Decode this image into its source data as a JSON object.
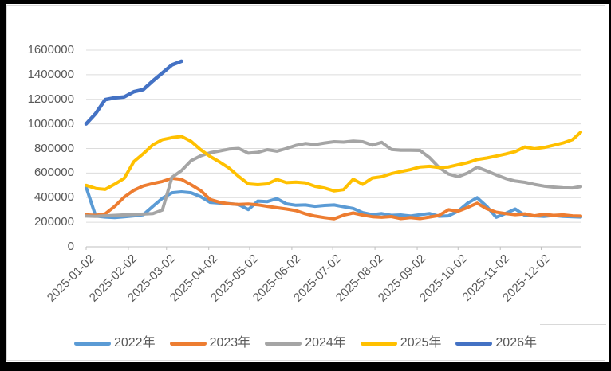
{
  "frame": {
    "background": "#000000",
    "canvas": "#FFFFFF",
    "border_color": "#D9D9D9"
  },
  "chart_data": {
    "type": "line",
    "title": "",
    "xlabel": "",
    "ylabel": "",
    "grid": true,
    "legend_position": "bottom",
    "ylim": [
      0,
      1600000
    ],
    "y_ticks": [
      0,
      200000,
      400000,
      600000,
      800000,
      1000000,
      1200000,
      1400000,
      1600000
    ],
    "x_tick_labels": [
      "2025-01-02",
      "2025-02-02",
      "2025-03-02",
      "2025-04-02",
      "2025-05-02",
      "2025-06-02",
      "2025-07-02",
      "2025-08-02",
      "2025-09-02",
      "2025-10-02",
      "2025-11-02",
      "2025-12-02"
    ],
    "colors": {
      "grid": "#DCDCDC",
      "axis": "#BFBFBF",
      "labels": "#595959"
    },
    "x_dates": [
      "2025-01-02",
      "2025-01-09",
      "2025-01-16",
      "2025-01-23",
      "2025-01-30",
      "2025-02-06",
      "2025-02-13",
      "2025-02-20",
      "2025-02-27",
      "2025-03-06",
      "2025-03-13",
      "2025-03-20",
      "2025-03-27",
      "2025-04-03",
      "2025-04-10",
      "2025-04-17",
      "2025-04-24",
      "2025-05-01",
      "2025-05-08",
      "2025-05-15",
      "2025-05-22",
      "2025-05-29",
      "2025-06-05",
      "2025-06-12",
      "2025-06-19",
      "2025-06-26",
      "2025-07-03",
      "2025-07-10",
      "2025-07-17",
      "2025-07-24",
      "2025-07-31",
      "2025-08-07",
      "2025-08-14",
      "2025-08-21",
      "2025-08-28",
      "2025-09-04",
      "2025-09-11",
      "2025-09-18",
      "2025-09-25",
      "2025-10-02",
      "2025-10-09",
      "2025-10-16",
      "2025-10-23",
      "2025-10-30",
      "2025-11-06",
      "2025-11-13",
      "2025-11-20",
      "2025-11-27",
      "2025-12-04",
      "2025-12-11",
      "2025-12-18",
      "2025-12-25",
      "2025-12-31"
    ],
    "series": [
      {
        "name": "2022年",
        "color": "#5B9BD5",
        "width": 4,
        "values": [
          485000,
          250000,
          242000,
          238000,
          245000,
          252000,
          262000,
          330000,
          395000,
          440000,
          447000,
          440000,
          408000,
          362000,
          356000,
          352000,
          343000,
          303000,
          372000,
          368000,
          392000,
          350000,
          338000,
          341000,
          330000,
          337000,
          341000,
          326000,
          312000,
          278000,
          262000,
          270000,
          256000,
          259000,
          251000,
          261000,
          271000,
          249000,
          252000,
          290000,
          355000,
          400000,
          330000,
          240000,
          272000,
          308000,
          255000,
          252000,
          248000,
          255000,
          248000,
          245000,
          242000
        ]
      },
      {
        "name": "2023年",
        "color": "#ED7D31",
        "width": 4,
        "values": [
          260000,
          256000,
          268000,
          330000,
          405000,
          460000,
          495000,
          515000,
          532000,
          558000,
          548000,
          505000,
          458000,
          385000,
          362000,
          350000,
          345000,
          348000,
          342000,
          330000,
          318000,
          308000,
          295000,
          268000,
          250000,
          238000,
          228000,
          258000,
          275000,
          258000,
          245000,
          240000,
          246000,
          230000,
          238000,
          230000,
          242000,
          255000,
          302000,
          290000,
          320000,
          355000,
          310000,
          282000,
          270000,
          262000,
          268000,
          252000,
          265000,
          256000,
          260000,
          252000,
          250000
        ]
      },
      {
        "name": "2024年",
        "color": "#A5A5A5",
        "width": 4,
        "values": [
          250000,
          248000,
          252000,
          256000,
          260000,
          263000,
          266000,
          270000,
          300000,
          565000,
          620000,
          700000,
          740000,
          765000,
          780000,
          795000,
          800000,
          762000,
          768000,
          790000,
          778000,
          800000,
          825000,
          840000,
          832000,
          845000,
          855000,
          852000,
          860000,
          855000,
          828000,
          850000,
          792000,
          786000,
          786000,
          784000,
          726000,
          645000,
          592000,
          570000,
          600000,
          648000,
          618000,
          585000,
          555000,
          535000,
          525000,
          508000,
          494000,
          486000,
          480000,
          479000,
          490000
        ]
      },
      {
        "name": "2025年",
        "color": "#FFC000",
        "width": 4,
        "values": [
          500000,
          475000,
          467000,
          510000,
          558000,
          693000,
          758000,
          830000,
          872000,
          888000,
          898000,
          858000,
          790000,
          735000,
          690000,
          640000,
          572000,
          512000,
          505000,
          512000,
          548000,
          522000,
          526000,
          520000,
          492000,
          478000,
          455000,
          465000,
          550000,
          508000,
          560000,
          570000,
          595000,
          612000,
          628000,
          650000,
          655000,
          645000,
          650000,
          668000,
          685000,
          710000,
          722000,
          738000,
          755000,
          775000,
          812000,
          798000,
          808000,
          825000,
          845000,
          872000,
          932000
        ]
      },
      {
        "name": "2026年",
        "color": "#4472C4",
        "width": 4.5,
        "values": [
          1000000,
          1085000,
          1198000,
          1212000,
          1220000,
          1262000,
          1280000,
          1350000,
          1415000,
          1480000,
          1510000
        ]
      }
    ]
  }
}
